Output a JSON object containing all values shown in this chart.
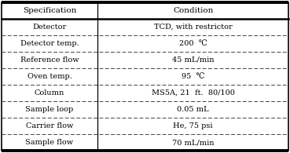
{
  "headers": [
    "Specification",
    "Condition"
  ],
  "rows": [
    [
      "Detector",
      "TCD, with restrictor"
    ],
    [
      "Detector temp.",
      "200  ℃"
    ],
    [
      "Reference flow",
      "45 mL/min"
    ],
    [
      "Oven temp.",
      "95  ℃"
    ],
    [
      "Column",
      "MS5A, 21  ft.  80/100"
    ],
    [
      "Sample loop",
      "0.05 mL"
    ],
    [
      "Carrier flow",
      "He, 75 psi"
    ],
    [
      "Sample flow",
      "70 mL/min"
    ]
  ],
  "col_split": 0.335,
  "border_color": "#000000",
  "dashed_color": "#444444",
  "font_size": 7.0,
  "header_font_size": 7.5,
  "font_family": "serif",
  "fig_width": 3.69,
  "fig_height": 1.95,
  "dpi": 100
}
